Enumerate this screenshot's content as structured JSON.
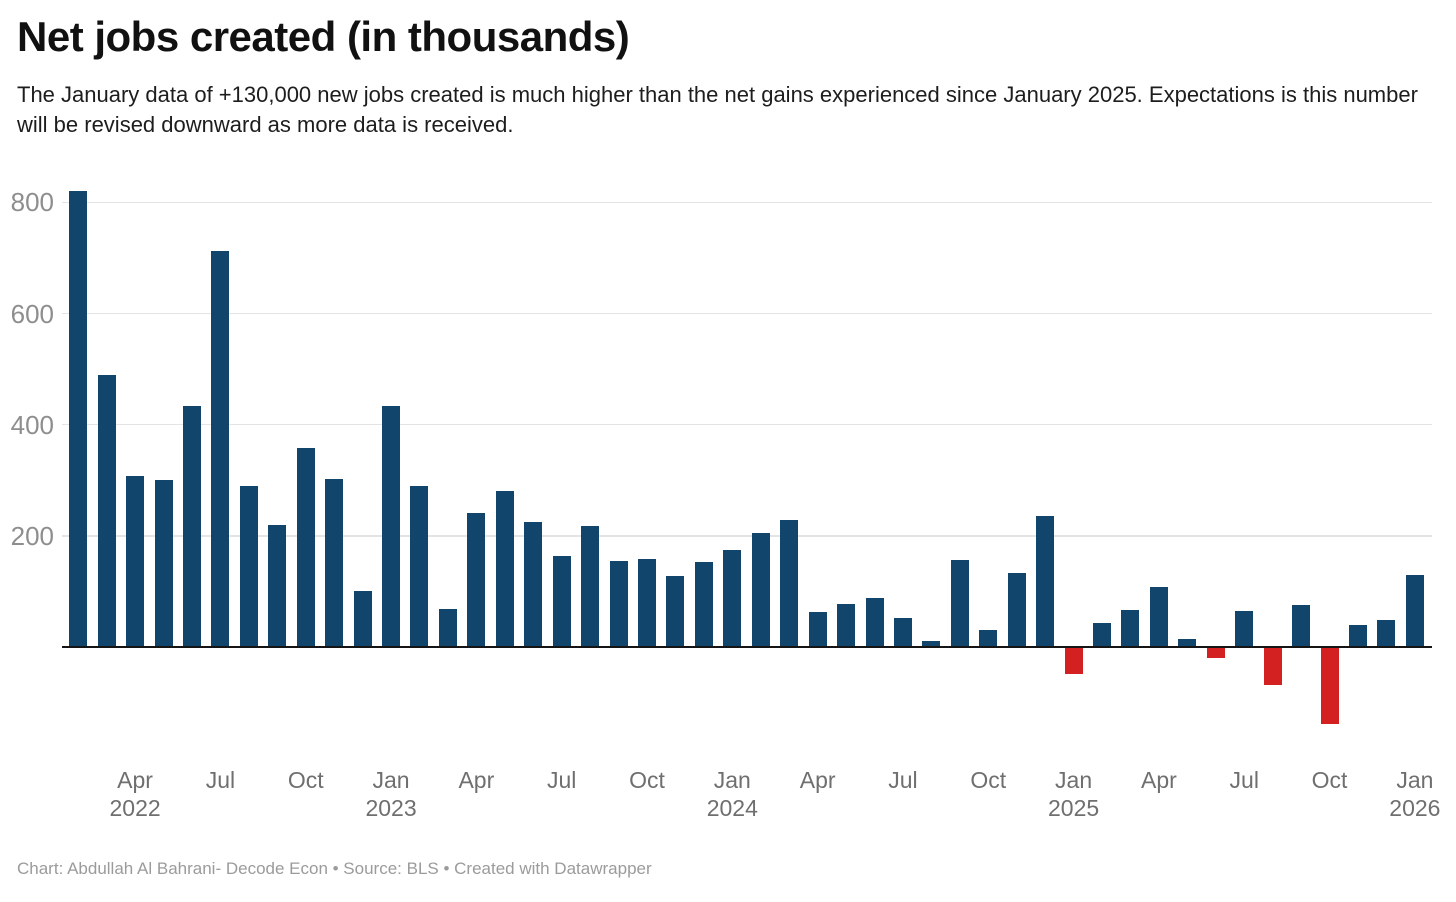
{
  "header": {
    "title": "Net jobs created (in thousands)",
    "description": "The January data of +130,000 new jobs created is much higher than the net gains experienced since January 2025. Expectations is this number will be revised downward as more data is received."
  },
  "footer": {
    "text": "Chart: Abdullah Al Bahrani- Decode Econ • Source: BLS • Created with Datawrapper"
  },
  "chart_data": {
    "type": "bar",
    "title": "Net jobs created (in thousands)",
    "unit_label": "thousands of jobs",
    "grid": true,
    "legend": "none",
    "ylim": [
      -160,
      840
    ],
    "yticks": [
      200,
      400,
      600,
      800
    ],
    "positive_color": "#12456b",
    "negative_color": "#d32122",
    "categories": [
      "Feb 2022",
      "Mar 2022",
      "Apr 2022",
      "May 2022",
      "Jun 2022",
      "Jul 2022",
      "Aug 2022",
      "Sep 2022",
      "Oct 2022",
      "Nov 2022",
      "Dec 2022",
      "Jan 2023",
      "Feb 2023",
      "Mar 2023",
      "Apr 2023",
      "May 2023",
      "Jun 2023",
      "Jul 2023",
      "Aug 2023",
      "Sep 2023",
      "Oct 2023",
      "Nov 2023",
      "Dec 2023",
      "Jan 2024",
      "Feb 2024",
      "Mar 2024",
      "Apr 2024",
      "May 2024",
      "Jun 2024",
      "Jul 2024",
      "Aug 2024",
      "Sep 2024",
      "Oct 2024",
      "Nov 2024",
      "Dec 2024",
      "Jan 2025",
      "Feb 2025",
      "Mar 2025",
      "Apr 2025",
      "May 2025",
      "Jun 2025",
      "Jul 2025",
      "Aug 2025",
      "Sep 2025",
      "Oct 2025",
      "Nov 2025",
      "Dec 2025",
      "Jan 2026"
    ],
    "values": [
      820,
      490,
      308,
      300,
      434,
      713,
      290,
      220,
      358,
      303,
      100,
      433,
      290,
      68,
      241,
      280,
      225,
      164,
      217,
      155,
      159,
      127,
      153,
      175,
      205,
      228,
      63,
      77,
      88,
      53,
      10,
      156,
      31,
      134,
      236,
      -48,
      44,
      67,
      108,
      14,
      -20,
      64,
      -68,
      75,
      -138,
      40,
      49,
      130
    ],
    "xticks": [
      {
        "index": 2,
        "label": "Apr",
        "year": "2022"
      },
      {
        "index": 5,
        "label": "Jul",
        "year": ""
      },
      {
        "index": 8,
        "label": "Oct",
        "year": ""
      },
      {
        "index": 11,
        "label": "Jan",
        "year": "2023"
      },
      {
        "index": 14,
        "label": "Apr",
        "year": ""
      },
      {
        "index": 17,
        "label": "Jul",
        "year": ""
      },
      {
        "index": 20,
        "label": "Oct",
        "year": ""
      },
      {
        "index": 23,
        "label": "Jan",
        "year": "2024"
      },
      {
        "index": 26,
        "label": "Apr",
        "year": ""
      },
      {
        "index": 29,
        "label": "Jul",
        "year": ""
      },
      {
        "index": 32,
        "label": "Oct",
        "year": ""
      },
      {
        "index": 35,
        "label": "Jan",
        "year": "2025"
      },
      {
        "index": 38,
        "label": "Apr",
        "year": ""
      },
      {
        "index": 41,
        "label": "Jul",
        "year": ""
      },
      {
        "index": 44,
        "label": "Oct",
        "year": ""
      },
      {
        "index": 47,
        "label": "Jan",
        "year": "2026"
      }
    ]
  }
}
